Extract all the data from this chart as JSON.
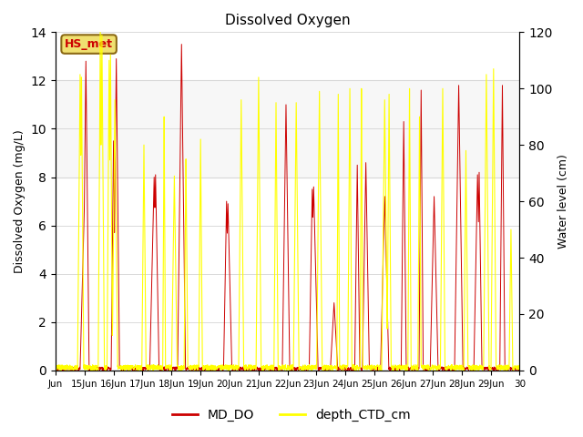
{
  "title": "Dissolved Oxygen",
  "ylabel_left": "Dissolved Oxygen (mg/L)",
  "ylabel_right": "Water level (cm)",
  "annotation": "HS_met",
  "legend": [
    "MD_DO",
    "depth_CTD_cm"
  ],
  "ylim_left": [
    0,
    14
  ],
  "ylim_right": [
    0,
    120
  ],
  "yticks_left": [
    0,
    2,
    4,
    6,
    8,
    10,
    12,
    14
  ],
  "yticks_right": [
    0,
    20,
    40,
    60,
    80,
    100,
    120
  ],
  "xtick_labels": [
    "Jun",
    "15Jun",
    "16Jun",
    "17Jun",
    "18Jun",
    "19Jun",
    "20Jun",
    "21Jun",
    "22Jun",
    "23Jun",
    "24Jun",
    "25Jun",
    "26Jun",
    "27Jun",
    "28Jun",
    "29Jun",
    "30"
  ],
  "shade_band": [
    8,
    12
  ],
  "do_color": "#cc0000",
  "depth_color": "#ffff00",
  "annotation_facecolor": "#f0e070",
  "annotation_edgecolor": "#8B6914",
  "annotation_textcolor": "#cc0000"
}
